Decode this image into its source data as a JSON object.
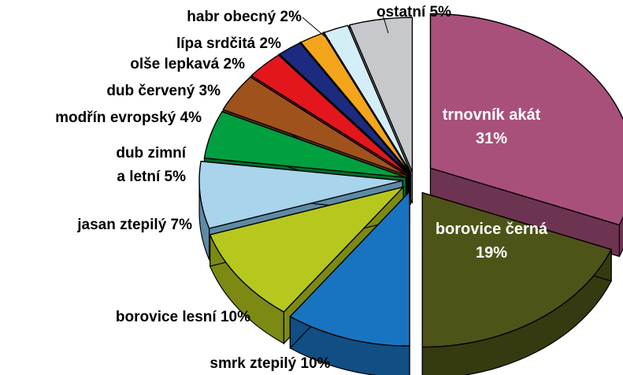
{
  "chart_data": {
    "type": "pie",
    "title": "",
    "style": "3d-exploded",
    "categories": [
      "trnovník akát",
      "borovice černá",
      "smrk ztepilý",
      "borovice lesní",
      "jasan ztepilý",
      "dub zimní a letní",
      "modřín evropský",
      "dub červený",
      "olše lepkavá",
      "lípa srdčitá",
      "habr obecný",
      "ostatní"
    ],
    "values": [
      31,
      19,
      10,
      10,
      7,
      5,
      4,
      3,
      2,
      2,
      2,
      5
    ],
    "colors": [
      "#A8507A",
      "#4E5418",
      "#1874C0",
      "#B6C81E",
      "#A8D4EC",
      "#00A040",
      "#A0521D",
      "#E3161E",
      "#1C2A80",
      "#F4A51C",
      "#D4EEF8",
      "#C6C8CB"
    ],
    "side_colors": [
      "#6C3450",
      "#363A10",
      "#104E84",
      "#7C8A14",
      "#5E8AA4",
      "#006E2C",
      "#6E3814",
      "#9C1014",
      "#121C58",
      "#A87014",
      "#92A4AC",
      "#8A8C8E"
    ],
    "labels": [
      [
        "trnovník akát",
        "31%"
      ],
      [
        "borovice černá",
        "19%"
      ],
      [
        "smrk ztepilý 10%"
      ],
      [
        "borovice lesní 10%"
      ],
      [
        "jasan ztepilý 7%"
      ],
      [
        "dub zimní",
        "a letní 5%"
      ],
      [
        "modřín evropský 4%"
      ],
      [
        "dub červený 3%"
      ],
      [
        "olše lepkavá 2%"
      ],
      [
        "lípa srdčitá 2%"
      ],
      [
        "habr obecný 2%"
      ],
      [
        "ostatní 5%"
      ]
    ]
  }
}
